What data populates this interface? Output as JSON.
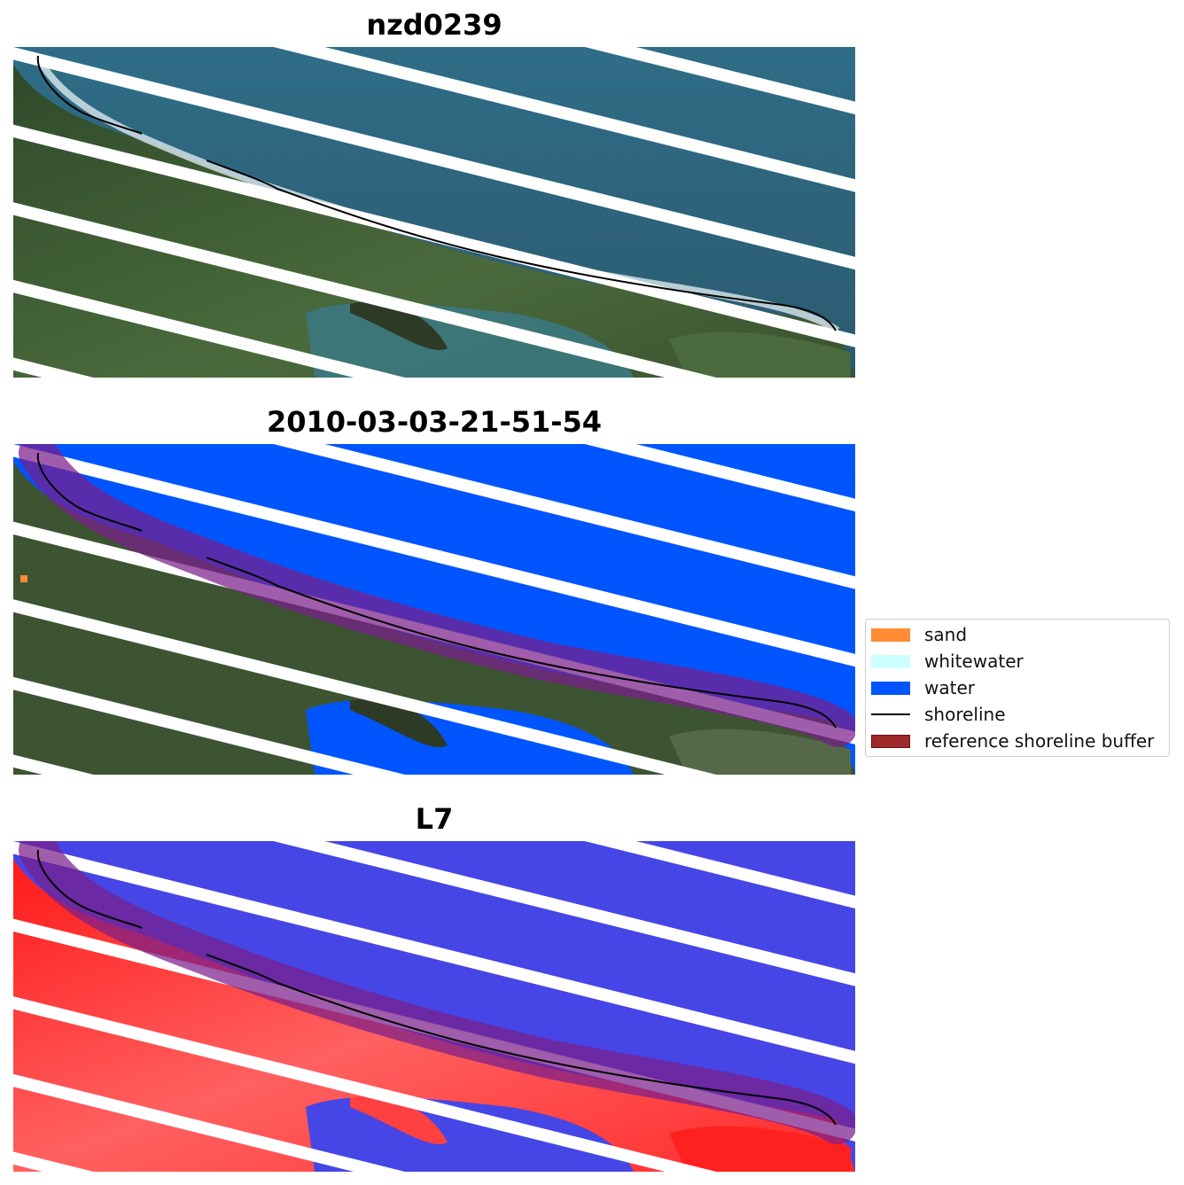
{
  "panels": [
    {
      "title": "nzd0239",
      "view": "true-color satellite image"
    },
    {
      "title": "2010-03-03-21-51-54",
      "view": "classified image"
    },
    {
      "title": "L7",
      "view": "water index image"
    }
  ],
  "legend": {
    "items": [
      {
        "label": "sand",
        "color": "#ff8c33",
        "kind": "patch"
      },
      {
        "label": "whitewater",
        "color": "#ccffff",
        "kind": "patch"
      },
      {
        "label": "water",
        "color": "#0055ff",
        "kind": "patch"
      },
      {
        "label": "shoreline",
        "color": "#000000",
        "kind": "line"
      },
      {
        "label": "reference shoreline buffer",
        "color": "#9e2a2a",
        "kind": "patch"
      }
    ]
  },
  "colors": {
    "ocean": "#2b5f78",
    "land": "#3a5230",
    "water_class": "#0055ff",
    "buffer": "#7a1f6e",
    "index_water": "#4646e6",
    "index_land": "#ff2a2a",
    "scan_gap": "#ffffff"
  }
}
